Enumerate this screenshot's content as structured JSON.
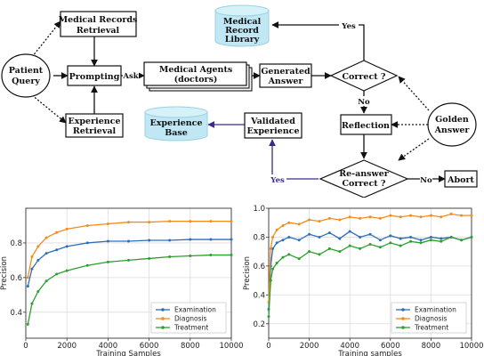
{
  "flowchart": {
    "nodes": {
      "patient_query": [
        "Patient",
        "Query"
      ],
      "records_retrieval": [
        "Medical Records",
        "Retrieval"
      ],
      "prompting": [
        "Prompting"
      ],
      "experience_retrieval": [
        "Experience",
        "Retrieval"
      ],
      "medical_agents": [
        "Medical Agents",
        "(doctors)"
      ],
      "generated_answer": [
        "Generated",
        "Answer"
      ],
      "correct": [
        "Correct ?"
      ],
      "record_library": [
        "Medical",
        "Record",
        "Library"
      ],
      "golden_answer": [
        "Golden",
        "Answer"
      ],
      "reflection": [
        "Reflection"
      ],
      "validated_experience": [
        "Validated",
        "Experience"
      ],
      "experience_base": [
        "Experience",
        "Base"
      ],
      "reanswer_correct": [
        "Re-answer",
        "Correct ?"
      ],
      "abort": [
        "Abort"
      ]
    },
    "edge_labels": {
      "ask": "Ask",
      "yes_top": "Yes",
      "no_mid": "No",
      "yes_bottom": "Yes",
      "no_bottom": "No"
    }
  },
  "colors": {
    "cylinder_fill": "#bfe8f4",
    "exam": "#2c6fbb",
    "diag": "#f28c1f",
    "treat": "#2ca02c",
    "blue_arrow": "#3a2a8c"
  },
  "chart_data": [
    {
      "type": "line",
      "title": "",
      "xlabel": "Training Samples",
      "ylabel": "Precision",
      "xlim": [
        0,
        10000
      ],
      "ylim": [
        0.25,
        1.0
      ],
      "xticks": [
        0,
        2000,
        4000,
        6000,
        8000,
        10000
      ],
      "yticks": [
        0.4,
        0.6,
        0.8
      ],
      "grid": true,
      "legend_position": "bottom-right",
      "series": [
        {
          "name": "Examination",
          "color": "#2c6fbb",
          "x": [
            100,
            300,
            600,
            1000,
            1500,
            2000,
            3000,
            4000,
            5000,
            6000,
            7000,
            8000,
            9000,
            10000
          ],
          "values": [
            0.55,
            0.65,
            0.7,
            0.74,
            0.76,
            0.78,
            0.8,
            0.81,
            0.81,
            0.815,
            0.815,
            0.82,
            0.82,
            0.82
          ]
        },
        {
          "name": "Diagnosis",
          "color": "#f28c1f",
          "x": [
            100,
            300,
            600,
            1000,
            1500,
            2000,
            3000,
            4000,
            5000,
            6000,
            7000,
            8000,
            9000,
            10000
          ],
          "values": [
            0.6,
            0.72,
            0.78,
            0.83,
            0.86,
            0.88,
            0.9,
            0.91,
            0.92,
            0.92,
            0.925,
            0.925,
            0.925,
            0.925
          ]
        },
        {
          "name": "Treatment",
          "color": "#2ca02c",
          "x": [
            100,
            300,
            600,
            1000,
            1500,
            2000,
            3000,
            4000,
            5000,
            6000,
            7000,
            8000,
            9000,
            10000
          ],
          "values": [
            0.33,
            0.45,
            0.52,
            0.58,
            0.62,
            0.64,
            0.67,
            0.69,
            0.7,
            0.71,
            0.72,
            0.725,
            0.73,
            0.73
          ]
        }
      ]
    },
    {
      "type": "line",
      "title": "",
      "xlabel": "Training samples",
      "ylabel": "Precision",
      "xlim": [
        0,
        10000
      ],
      "ylim": [
        0.1,
        1.0
      ],
      "xticks": [
        0,
        2000,
        4000,
        6000,
        8000,
        10000
      ],
      "yticks": [
        0.2,
        0.4,
        0.6,
        0.8,
        1.0
      ],
      "grid": true,
      "legend_position": "bottom-right",
      "series": [
        {
          "name": "Examination",
          "color": "#2c6fbb",
          "x": [
            0,
            100,
            200,
            400,
            700,
            1000,
            1500,
            2000,
            2500,
            3000,
            3500,
            4000,
            4500,
            5000,
            5500,
            6000,
            6500,
            7000,
            7500,
            8000,
            8500,
            9000,
            9500,
            10000
          ],
          "values": [
            0.3,
            0.6,
            0.72,
            0.76,
            0.78,
            0.8,
            0.78,
            0.82,
            0.8,
            0.83,
            0.79,
            0.84,
            0.8,
            0.82,
            0.78,
            0.81,
            0.79,
            0.8,
            0.78,
            0.8,
            0.79,
            0.8,
            0.78,
            0.8
          ]
        },
        {
          "name": "Diagnosis",
          "color": "#f28c1f",
          "x": [
            0,
            100,
            200,
            400,
            700,
            1000,
            1500,
            2000,
            2500,
            3000,
            3500,
            4000,
            4500,
            5000,
            5500,
            6000,
            6500,
            7000,
            7500,
            8000,
            8500,
            9000,
            9500,
            10000
          ],
          "values": [
            0.35,
            0.72,
            0.8,
            0.85,
            0.88,
            0.9,
            0.89,
            0.92,
            0.91,
            0.93,
            0.92,
            0.94,
            0.93,
            0.94,
            0.93,
            0.95,
            0.94,
            0.95,
            0.94,
            0.95,
            0.94,
            0.96,
            0.95,
            0.95
          ]
        },
        {
          "name": "Treatment",
          "color": "#2ca02c",
          "x": [
            0,
            100,
            200,
            400,
            700,
            1000,
            1500,
            2000,
            2500,
            3000,
            3500,
            4000,
            4500,
            5000,
            5500,
            6000,
            6500,
            7000,
            7500,
            8000,
            8500,
            9000,
            9500,
            10000
          ],
          "values": [
            0.25,
            0.5,
            0.58,
            0.62,
            0.66,
            0.68,
            0.65,
            0.7,
            0.68,
            0.72,
            0.7,
            0.74,
            0.72,
            0.75,
            0.73,
            0.76,
            0.74,
            0.77,
            0.76,
            0.78,
            0.77,
            0.8,
            0.78,
            0.8
          ]
        }
      ]
    }
  ]
}
